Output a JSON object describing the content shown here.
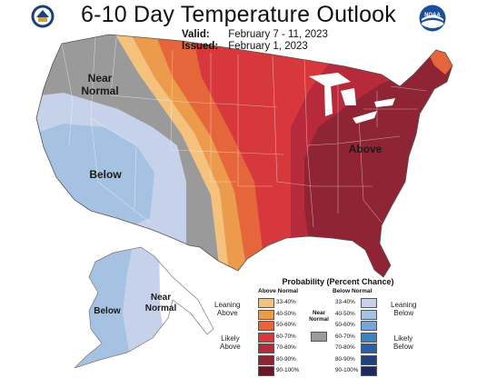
{
  "header": {
    "title": "6-10 Day Temperature Outlook",
    "valid_label": "Valid:",
    "valid_value": "February 7 - 11, 2023",
    "issued_label": "Issued:",
    "issued_value": "February 1, 2023",
    "left_logo": "department-of-commerce-seal",
    "right_logo": "noaa-logo",
    "right_logo_text": "NOAA"
  },
  "map_labels": {
    "near_normal_west": "Near Normal",
    "below_west": "Below",
    "above_east": "Above",
    "below_alaska": "Below",
    "near_normal_alaska": "Near Normal"
  },
  "legend": {
    "title": "Probability (Percent Chance)",
    "above_heading": "Above Normal",
    "below_heading": "Below Normal",
    "near_normal_label": "Near Normal",
    "leaning_above": "Leaning Above",
    "likely_above": "Likely Above",
    "leaning_below": "Leaning Below",
    "likely_below": "Likely Below",
    "above": [
      {
        "range": "33-40%",
        "color": "#f4c27c"
      },
      {
        "range": "40-50%",
        "color": "#ec9a4c"
      },
      {
        "range": "50-60%",
        "color": "#e4663a"
      },
      {
        "range": "60-70%",
        "color": "#d6383c"
      },
      {
        "range": "70-80%",
        "color": "#b62a3c"
      },
      {
        "range": "80-90%",
        "color": "#8e2434"
      },
      {
        "range": "90-100%",
        "color": "#6a1826"
      }
    ],
    "below": [
      {
        "range": "33-40%",
        "color": "#c6d2ea"
      },
      {
        "range": "40-50%",
        "color": "#a6c2e2"
      },
      {
        "range": "50-60%",
        "color": "#76a6d6"
      },
      {
        "range": "60-70%",
        "color": "#3c82c0"
      },
      {
        "range": "70-80%",
        "color": "#2a5ea6"
      },
      {
        "range": "80-90%",
        "color": "#22407e"
      },
      {
        "range": "90-100%",
        "color": "#1c2a5c"
      }
    ],
    "near_normal_color": "#9a9a9a"
  }
}
